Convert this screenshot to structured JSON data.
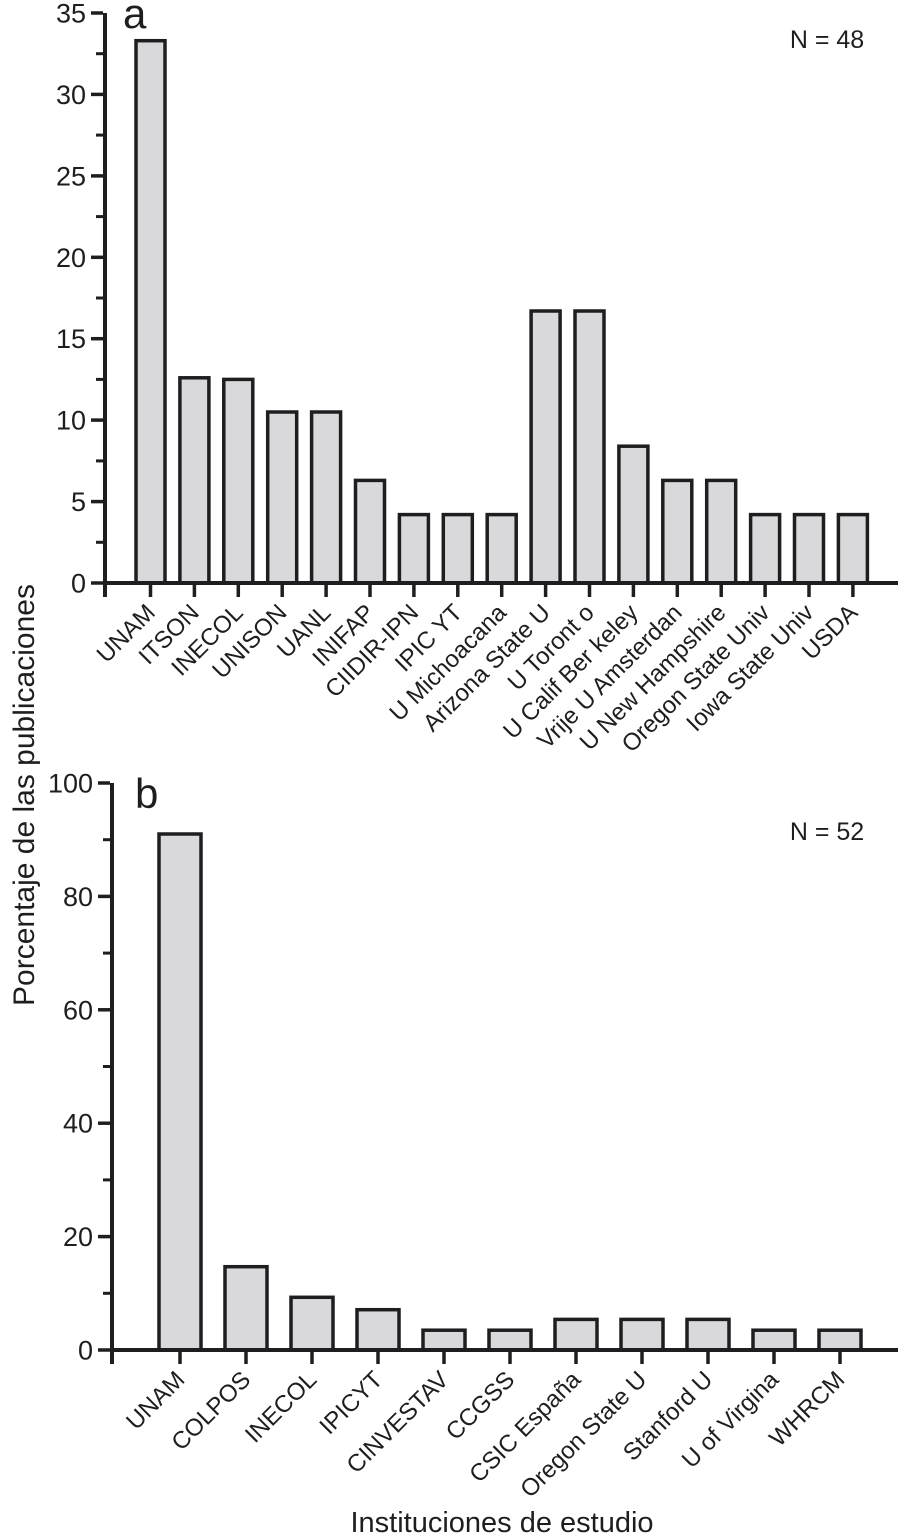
{
  "figure": {
    "ylabel": "Porcentaje de las publicaciones",
    "xlabel": "Instituciones de estudio",
    "colors": {
      "bar_fill": "#d9d9db",
      "bar_stroke": "#1e1e20",
      "axis": "#1e1e20",
      "text": "#1e1e20",
      "background": "#ffffff"
    }
  },
  "chart_data": [
    {
      "type": "bar",
      "panel_label": "a",
      "annotation": "N = 48",
      "categories": [
        "UNAM",
        "ITSON",
        "INECOL",
        "UNISON",
        "UANL",
        "INIFAP",
        "CIIDIR-IPN",
        "IPIC YT",
        "U Michoacana",
        "Arizona State U",
        "U Toront o",
        "U Calif Ber keley",
        "Vrije U Amsterdan",
        "U New Hampshire",
        "Oregon State Univ",
        "Iowa State Univ",
        "USDA"
      ],
      "values": [
        33.3,
        12.6,
        12.5,
        10.5,
        10.5,
        6.3,
        4.2,
        4.2,
        4.2,
        16.7,
        16.7,
        8.4,
        6.3,
        6.3,
        4.2,
        4.2,
        4.2
      ],
      "ylabel": "Porcentaje de las publicaciones",
      "xlabel": "Instituciones de estudio",
      "ylim": [
        0,
        35
      ],
      "ytick_major_step": 5,
      "ytick_minor_step": 2.5,
      "ytick_labels": [
        "0",
        "5",
        "10",
        "15",
        "20",
        "25",
        "30",
        "35"
      ],
      "grid": false,
      "legend": false
    },
    {
      "type": "bar",
      "panel_label": "b",
      "annotation": "N = 52",
      "categories": [
        "UNAM",
        "COLPOS",
        "INECOL",
        "IPICYT",
        "CINVESTAV",
        "CCGSS",
        "CSIC España",
        "Oregon State U",
        "Stanford U",
        "U of Virgina",
        "WHRCM"
      ],
      "values": [
        91,
        14.7,
        9.3,
        7.1,
        3.5,
        3.5,
        5.4,
        5.4,
        5.4,
        3.5,
        3.5
      ],
      "ylabel": "Porcentaje de las publicaciones",
      "xlabel": "Instituciones de estudio",
      "ylim": [
        0,
        100
      ],
      "ytick_major_step": 20,
      "ytick_minor_step": 10,
      "ytick_labels": [
        "0",
        "20",
        "40",
        "60",
        "80",
        "100"
      ],
      "grid": false,
      "legend": false
    }
  ]
}
